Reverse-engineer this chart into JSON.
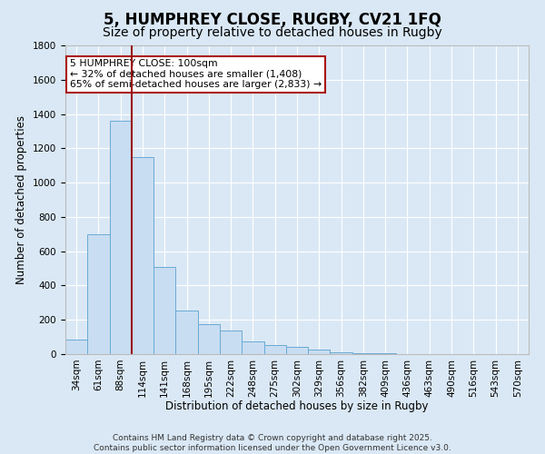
{
  "title1": "5, HUMPHREY CLOSE, RUGBY, CV21 1FQ",
  "title2": "Size of property relative to detached houses in Rugby",
  "xlabel": "Distribution of detached houses by size in Rugby",
  "ylabel": "Number of detached properties",
  "categories": [
    "34sqm",
    "61sqm",
    "88sqm",
    "114sqm",
    "141sqm",
    "168sqm",
    "195sqm",
    "222sqm",
    "248sqm",
    "275sqm",
    "302sqm",
    "329sqm",
    "356sqm",
    "382sqm",
    "409sqm",
    "436sqm",
    "463sqm",
    "490sqm",
    "516sqm",
    "543sqm",
    "570sqm"
  ],
  "values": [
    85,
    700,
    1360,
    1150,
    510,
    255,
    175,
    140,
    75,
    55,
    40,
    25,
    12,
    5,
    3,
    2,
    1,
    1,
    0,
    0,
    1
  ],
  "bar_color": "#c8ddf2",
  "bar_edge_color": "#6aaad4",
  "background_color": "#dae8f5",
  "grid_color": "#ffffff",
  "vline_x_offset": 0.5,
  "vline_bin_index": 2,
  "vline_color": "#9b1010",
  "ylim": [
    0,
    1800
  ],
  "annotation_text": "5 HUMPHREY CLOSE: 100sqm\n← 32% of detached houses are smaller (1,408)\n65% of semi-detached houses are larger (2,833) →",
  "annotation_box_color": "#ffffff",
  "annotation_box_edge": "#aa1111",
  "footer1": "Contains HM Land Registry data © Crown copyright and database right 2025.",
  "footer2": "Contains public sector information licensed under the Open Government Licence v3.0.",
  "title1_fontsize": 12,
  "title2_fontsize": 10,
  "tick_fontsize": 7.5,
  "ylabel_fontsize": 8.5,
  "xlabel_fontsize": 8.5,
  "annotation_fontsize": 7.8,
  "footer_fontsize": 6.5
}
